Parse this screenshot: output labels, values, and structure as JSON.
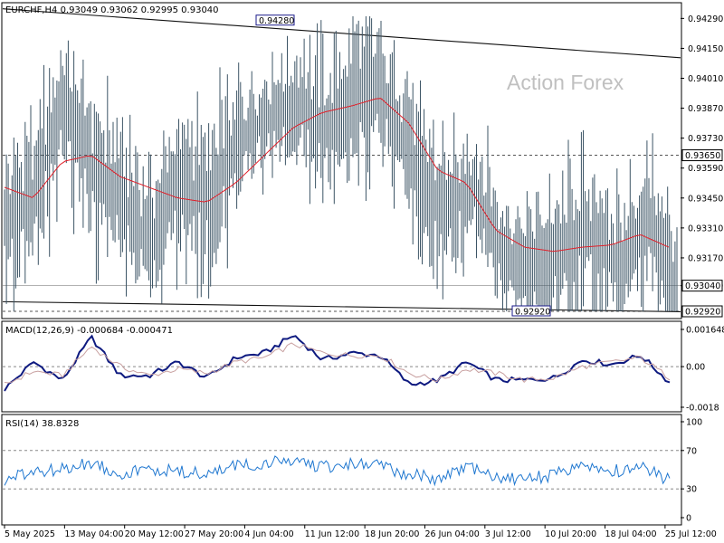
{
  "chart_data": [
    {
      "type": "ohlc",
      "panel": "main",
      "title": "EURCHF,H4  0.93049 0.93062 0.92995 0.93040",
      "watermark": "Action Forex",
      "ylim": [
        0.9292,
        0.943
      ],
      "yticks": [
        "0.94290",
        "0.94150",
        "0.94010",
        "0.93870",
        "0.93730",
        "0.93590",
        "0.93450",
        "0.93310",
        "0.93170",
        "0.93040"
      ],
      "ytick_values": [
        0.9429,
        0.9415,
        0.9401,
        0.9387,
        0.9373,
        0.9359,
        0.9345,
        0.9331,
        0.9317,
        0.9304
      ],
      "price_markers": [
        {
          "label": "0.93650",
          "value": 0.9365
        },
        {
          "label": "0.93040",
          "value": 0.9304
        },
        {
          "label": "0.92920",
          "value": 0.9292
        }
      ],
      "annotations": [
        {
          "text": "0.94280",
          "value": 0.9428,
          "date": "11 Jun 2025"
        },
        {
          "text": "0.92920",
          "value": 0.9292,
          "date": "14 Jul 2025"
        }
      ],
      "hlines": [
        0.9365,
        0.9292
      ],
      "trendlines": [
        {
          "from": [
            "5 May 2025",
            0.94335
          ],
          "to": [
            "28 Jul 2025",
            0.94106
          ]
        },
        {
          "from": [
            "5 May 2025",
            0.92965
          ],
          "to": [
            "28 Jul 2025",
            0.92918
          ]
        }
      ],
      "series_points": {
        "x": [
          "5 May",
          "8 May",
          "13 May",
          "17 May",
          "20 May",
          "24 May",
          "27 May",
          "31 May",
          "4 Jun",
          "8 Jun",
          "11 Jun",
          "14 Jun",
          "18 Jun",
          "22 Jun",
          "26 Jun",
          "30 Jun",
          "3 Jul",
          "7 Jul",
          "10 Jul",
          "14 Jul",
          "18 Jul",
          "21 Jul",
          "25 Jul",
          "28 Jul"
        ],
        "close": [
          0.9335,
          0.9345,
          0.939,
          0.936,
          0.9345,
          0.9325,
          0.9355,
          0.934,
          0.9372,
          0.9382,
          0.9388,
          0.9378,
          0.9392,
          0.9395,
          0.936,
          0.9336,
          0.935,
          0.932,
          0.9312,
          0.9318,
          0.9328,
          0.9312,
          0.9335,
          0.9304
        ]
      },
      "ma": [
        0.935,
        0.9345,
        0.9362,
        0.9365,
        0.9355,
        0.935,
        0.9345,
        0.9343,
        0.9352,
        0.9365,
        0.9378,
        0.9385,
        0.9388,
        0.9392,
        0.938,
        0.9358,
        0.9352,
        0.933,
        0.9322,
        0.932,
        0.9322,
        0.9323,
        0.9328,
        0.9322
      ],
      "line_color": "#3d5566",
      "ma_color": "#e0202a"
    },
    {
      "type": "line",
      "panel": "macd",
      "title": "MACD(12,26,9) -0.000684 -0.000471",
      "ylim": [
        -0.0018,
        0.001648
      ],
      "yticks": [
        "0.001648",
        "0.00",
        "-0.0018"
      ],
      "ytick_values": [
        0.001648,
        0.0,
        -0.0018
      ],
      "series": [
        {
          "values": [
            -0.001,
            0.0002,
            -0.0006,
            0.0013,
            -0.0004,
            -0.0004,
            0.0002,
            -0.0005,
            0.0004,
            0.0006,
            0.0014,
            0.0003,
            0.0006,
            0.0005,
            -0.0008,
            -0.0006,
            0.0002,
            -0.0006,
            -0.0006,
            -0.0005,
            0.0003,
            0.0001,
            0.0005,
            -0.0007
          ]
        },
        {
          "values": [
            -0.0008,
            -0.0002,
            -0.0004,
            0.0009,
            0.0,
            -0.0004,
            -0.0001,
            -0.0003,
            0.0002,
            0.0004,
            0.001,
            0.0006,
            0.0005,
            0.0005,
            -0.0003,
            -0.0006,
            -0.0001,
            -0.0003,
            -0.0006,
            -0.0005,
            0.0,
            0.0002,
            0.0004,
            -0.0005
          ]
        }
      ],
      "colors": [
        "#0e1a80",
        "#c8a0a0"
      ]
    },
    {
      "type": "line",
      "panel": "rsi",
      "title": "RSI(14) 38.8328",
      "ylim": [
        0,
        100
      ],
      "yticks": [
        "100",
        "70",
        "30",
        "0"
      ],
      "ytick_values": [
        100,
        70,
        30,
        0
      ],
      "levels": [
        70,
        30
      ],
      "series": [
        {
          "values": [
            38,
            48,
            50,
            58,
            46,
            50,
            48,
            45,
            54,
            56,
            60,
            52,
            56,
            54,
            45,
            40,
            52,
            42,
            40,
            44,
            56,
            48,
            54,
            39
          ]
        }
      ],
      "colors": [
        "#1f77d0"
      ]
    }
  ],
  "x_axis": {
    "labels": [
      "5 May 2025",
      "13 May 04:00",
      "20 May 12:00",
      "27 May 20:00",
      "4 Jun 04:00",
      "11 Jun 12:00",
      "18 Jun 20:00",
      "26 Jun 04:00",
      "3 Jul 12:00",
      "10 Jul 20:00",
      "18 Jul 04:00",
      "25 Jul 12:00"
    ]
  }
}
